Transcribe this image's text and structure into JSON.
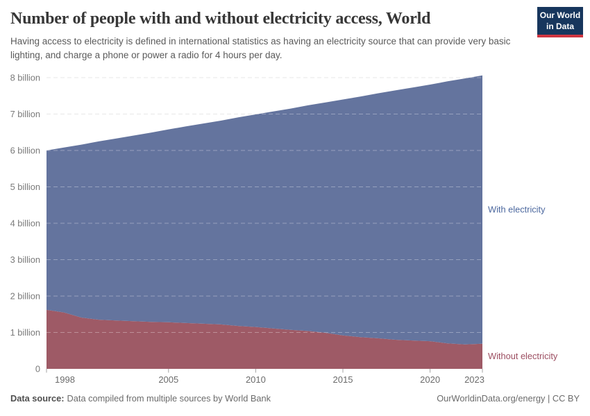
{
  "header": {
    "title": "Number of people with and without electricity access, World",
    "subtitle": "Having access to electricity is defined in international statistics as having an electricity source that can provide very basic lighting, and charge a phone or power a radio for 4 hours per day.",
    "logo": {
      "line1": "Our World",
      "line2": "in Data",
      "bg_color": "#17365d",
      "accent_color": "#cf3540",
      "text_color": "#ffffff"
    }
  },
  "chart_data": {
    "type": "area",
    "stacked": true,
    "title": "Number of people with and without electricity access, World",
    "units": "billion people",
    "x": [
      1998,
      1999,
      2000,
      2001,
      2002,
      2003,
      2004,
      2005,
      2006,
      2007,
      2008,
      2009,
      2010,
      2011,
      2012,
      2013,
      2014,
      2015,
      2016,
      2017,
      2018,
      2019,
      2020,
      2021,
      2022,
      2023
    ],
    "series": [
      {
        "name": "Without electricity",
        "fill_color": "#9E5A66",
        "label_color": "#9C4E61",
        "values": [
          1.62,
          1.55,
          1.41,
          1.35,
          1.33,
          1.31,
          1.29,
          1.28,
          1.26,
          1.24,
          1.22,
          1.18,
          1.15,
          1.11,
          1.07,
          1.04,
          0.99,
          0.92,
          0.87,
          0.84,
          0.8,
          0.78,
          0.76,
          0.7,
          0.67,
          0.69
        ]
      },
      {
        "name": "With electricity",
        "fill_color": "#64749E",
        "label_color": "#4C689E",
        "values": [
          4.38,
          4.53,
          4.75,
          4.9,
          5.0,
          5.1,
          5.2,
          5.3,
          5.4,
          5.5,
          5.6,
          5.73,
          5.84,
          5.96,
          6.08,
          6.2,
          6.33,
          6.48,
          6.61,
          6.73,
          6.85,
          6.95,
          7.05,
          7.2,
          7.31,
          7.37
        ]
      }
    ],
    "xlim": [
      1998,
      2023
    ],
    "ylim": [
      0,
      8
    ],
    "ytick_values": [
      0,
      1,
      2,
      3,
      4,
      5,
      6,
      7,
      8
    ],
    "ytick_labels": [
      "0",
      "1 billion",
      "2 billion",
      "3 billion",
      "4 billion",
      "5 billion",
      "6 billion",
      "7 billion",
      "8 billion"
    ],
    "xticks": [
      1998,
      2005,
      2010,
      2015,
      2020,
      2023
    ],
    "grid": "horizontal-dashed",
    "grid_color": "#dcdcdc",
    "axis_text_color": "#7a7a7a",
    "xaxis_text_color": "#6b6b6b",
    "tick_color": "#a3a3a3",
    "legend_position": "labels-right-of-areas"
  },
  "footer": {
    "source_label": "Data source:",
    "source_text": "Data compiled from multiple sources by World Bank",
    "credit": "OurWorldinData.org/energy | CC BY"
  }
}
